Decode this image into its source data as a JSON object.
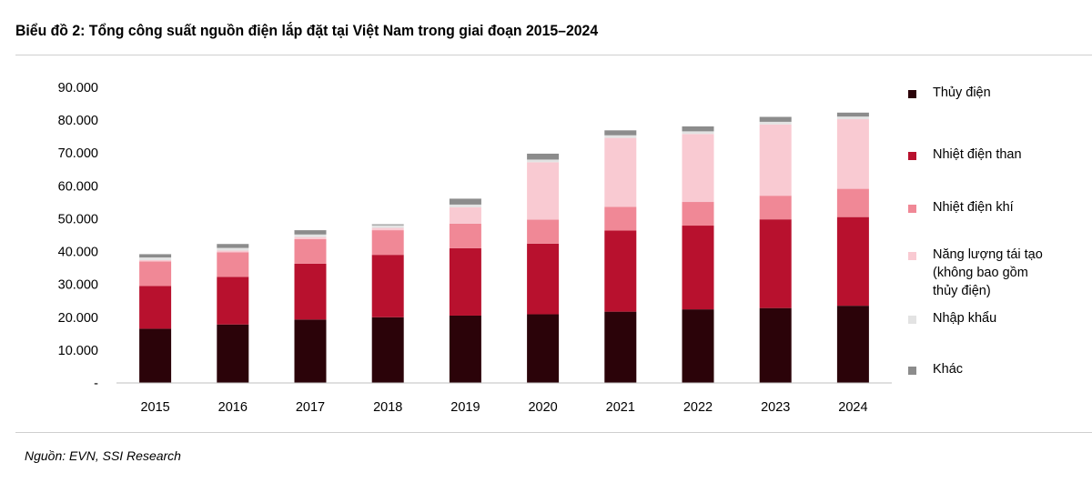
{
  "title": "Biểu đồ 2: Tổng công suất nguồn điện lắp đặt tại Việt Nam trong giai đoạn 2015–2024",
  "source": "Nguồn: EVN, SSI Research",
  "colors": {
    "thuy_dien": "#2b0309",
    "nhiet_dien_than": "#b8112e",
    "nhiet_dien_khi": "#f08896",
    "nang_luong_tai_tao": "#f9cad2",
    "nhap_khau": "#e3e3e3",
    "khac": "#8c8c8c"
  },
  "legend": [
    {
      "label": "Thủy điện",
      "color": "#2b0309"
    },
    {
      "label": "Nhiệt điện than",
      "color": "#b8112e"
    },
    {
      "label": "Nhiệt điện khí",
      "color": "#f08896"
    },
    {
      "label": "Năng lượng tái tạo\n(không bao gồm\nthủy điện)",
      "color": "#f9cad2"
    },
    {
      "label": "Nhập khẩu",
      "color": "#e3e3e3"
    },
    {
      "label": "Khác",
      "color": "#8c8c8c"
    }
  ],
  "chart_data": {
    "type": "bar",
    "stacked": true,
    "title": "Biểu đồ 2: Tổng công suất nguồn điện lắp đặt tại Việt Nam trong giai đoạn 2015–2024",
    "xlabel": "",
    "ylabel": "",
    "ylim": [
      0,
      90000
    ],
    "yticks": [
      0,
      10000,
      20000,
      30000,
      40000,
      50000,
      60000,
      70000,
      80000,
      90000
    ],
    "ytick_labels": [
      "-",
      "10.000",
      "20.000",
      "30.000",
      "40.000",
      "50.000",
      "60.000",
      "70.000",
      "80.000",
      "90.000"
    ],
    "categories": [
      "2015",
      "2016",
      "2017",
      "2018",
      "2019",
      "2020",
      "2021",
      "2022",
      "2023",
      "2024"
    ],
    "legend_position": "right",
    "series": [
      {
        "name": "Thủy điện",
        "color": "#2b0309",
        "values": [
          16500,
          17800,
          19300,
          20000,
          20500,
          20900,
          21700,
          22400,
          22800,
          23500
        ]
      },
      {
        "name": "Nhiệt điện than",
        "color": "#b8112e",
        "values": [
          13000,
          14500,
          17000,
          19000,
          20500,
          21500,
          24700,
          25500,
          27000,
          27000
        ]
      },
      {
        "name": "Nhiệt điện khí",
        "color": "#f08896",
        "values": [
          7500,
          7500,
          7500,
          7500,
          7500,
          7300,
          7200,
          7200,
          7200,
          8600
        ]
      },
      {
        "name": "Năng lượng tái tạo (không bao gồm thủy điện)",
        "color": "#f9cad2",
        "values": [
          400,
          500,
          600,
          700,
          5000,
          17500,
          21000,
          20700,
          21700,
          21200
        ]
      },
      {
        "name": "Nhập khẩu",
        "color": "#e3e3e3",
        "values": [
          800,
          800,
          800,
          800,
          800,
          800,
          800,
          800,
          800,
          800
        ]
      },
      {
        "name": "Khác",
        "color": "#8c8c8c",
        "values": [
          1000,
          1200,
          1300,
          300,
          1800,
          1800,
          1500,
          1500,
          1500,
          1200
        ]
      }
    ]
  }
}
